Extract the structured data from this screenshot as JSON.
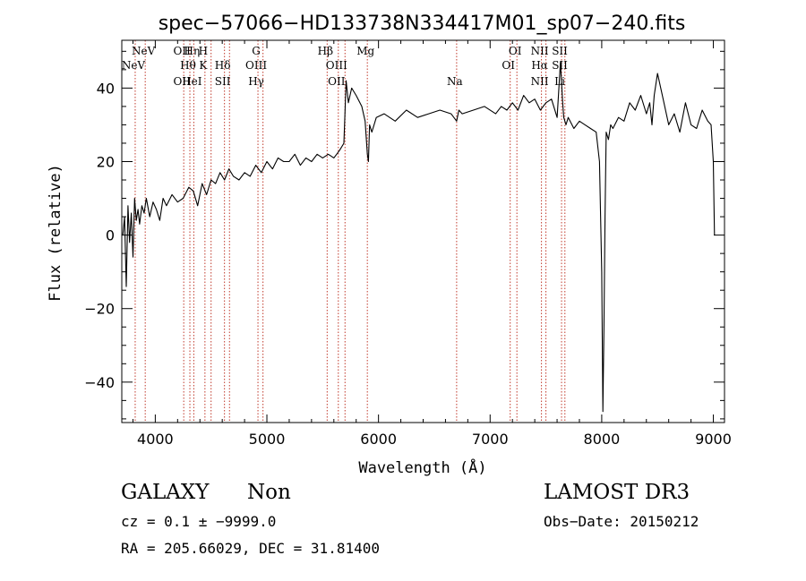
{
  "chart_data": {
    "type": "line",
    "title": "spec−57066−HD133738N334417M01_sp07−240.fits",
    "xlabel": "Wavelength (Å)",
    "ylabel": "Flux (relative)",
    "xlim": [
      3700,
      9100
    ],
    "ylim": [
      -51,
      53
    ],
    "xticks": [
      {
        "v": 4000,
        "label": "4000"
      },
      {
        "v": 5000,
        "label": "5000"
      },
      {
        "v": 6000,
        "label": "6000"
      },
      {
        "v": 7000,
        "label": "7000"
      },
      {
        "v": 8000,
        "label": "8000"
      },
      {
        "v": 9000,
        "label": "9000"
      }
    ],
    "yticks": [
      {
        "v": -40,
        "label": "−40"
      },
      {
        "v": -20,
        "label": "−20"
      },
      {
        "v": 0,
        "label": "0"
      },
      {
        "v": 20,
        "label": "20"
      },
      {
        "v": 40,
        "label": "40"
      }
    ],
    "line_color": "#000000",
    "marker_color": "#c0392b",
    "series": [
      {
        "x": [
          3710,
          3725,
          3740,
          3755,
          3770,
          3785,
          3800,
          3815,
          3830,
          3845,
          3860,
          3880,
          3900,
          3920,
          3950,
          3980,
          4010,
          4040,
          4070,
          4100,
          4150,
          4200,
          4250,
          4300,
          4340,
          4380,
          4420,
          4460,
          4500,
          4540,
          4580,
          4620,
          4660,
          4700,
          4750,
          4800,
          4850,
          4900,
          4950,
          5000,
          5050,
          5100,
          5150,
          5200,
          5250,
          5300,
          5350,
          5400,
          5450,
          5500,
          5550,
          5600,
          5650,
          5690,
          5710,
          5730,
          5760,
          5800,
          5850,
          5880,
          5900,
          5910,
          5920,
          5940,
          5980,
          6050,
          6150,
          6250,
          6350,
          6450,
          6550,
          6650,
          6700,
          6720,
          6750,
          6850,
          6950,
          7050,
          7100,
          7150,
          7200,
          7250,
          7300,
          7350,
          7400,
          7450,
          7500,
          7550,
          7600,
          7630,
          7650,
          7660,
          7680,
          7700,
          7750,
          7800,
          7850,
          7900,
          7950,
          7980,
          8000,
          8010,
          8020,
          8030,
          8040,
          8060,
          8080,
          8100,
          8150,
          8200,
          8250,
          8300,
          8350,
          8400,
          8430,
          8450,
          8470,
          8500,
          8550,
          8600,
          8650,
          8700,
          8750,
          8800,
          8850,
          8900,
          8950,
          8980,
          9000,
          9010
        ],
        "values": [
          0,
          5,
          -14,
          8,
          -2,
          6,
          -6,
          10,
          4,
          7,
          3,
          8,
          6,
          10,
          5,
          9,
          7,
          4,
          10,
          8,
          11,
          9,
          10,
          13,
          12,
          8,
          14,
          11,
          15,
          14,
          17,
          15,
          18,
          16,
          15,
          17,
          16,
          19,
          17,
          20,
          18,
          21,
          20,
          20,
          22,
          19,
          21,
          20,
          22,
          21,
          22,
          21,
          23,
          25,
          42,
          36,
          40,
          38,
          35,
          31,
          22,
          20,
          30,
          28,
          32,
          33,
          31,
          34,
          32,
          33,
          34,
          33,
          31,
          34,
          33,
          34,
          35,
          33,
          35,
          34,
          36,
          34,
          38,
          36,
          37,
          34,
          36,
          37,
          32,
          47,
          36,
          32,
          30,
          32,
          29,
          31,
          30,
          29,
          28,
          20,
          -10,
          -48,
          -25,
          5,
          28,
          26,
          30,
          29,
          32,
          31,
          36,
          34,
          38,
          33,
          36,
          30,
          38,
          44,
          37,
          30,
          33,
          28,
          36,
          30,
          29,
          34,
          31,
          30,
          20,
          0
        ]
      }
    ],
    "markers": [
      {
        "x": 3820,
        "labels": [
          "",
          "NeV"
        ]
      },
      {
        "x": 3910,
        "labels": [
          "NeV"
        ]
      },
      {
        "x": 4255,
        "labels": [
          "OII",
          "",
          "OII"
        ]
      },
      {
        "x": 4310,
        "labels": [
          "",
          "Hθ"
        ]
      },
      {
        "x": 4345,
        "labels": [
          "Hη",
          "",
          "HeI"
        ]
      },
      {
        "x": 4445,
        "labels": [
          "H",
          "K"
        ]
      },
      {
        "x": 4500,
        "labels": []
      },
      {
        "x": 4620,
        "labels": [
          "",
          "Hδ",
          "SII"
        ]
      },
      {
        "x": 4665,
        "labels": []
      },
      {
        "x": 4920,
        "labels": [
          "G",
          "OIII",
          "Hγ"
        ]
      },
      {
        "x": 4965,
        "labels": []
      },
      {
        "x": 5540,
        "labels": [
          "Hβ"
        ]
      },
      {
        "x": 5640,
        "labels": [
          "",
          "OIII",
          "OII"
        ]
      },
      {
        "x": 5700,
        "labels": []
      },
      {
        "x": 5900,
        "labels": [
          "Mg"
        ]
      },
      {
        "x": 6700,
        "labels": [
          "",
          "",
          "Na"
        ]
      },
      {
        "x": 7180,
        "labels": [
          "",
          "OI"
        ]
      },
      {
        "x": 7240,
        "labels": [
          "OI"
        ]
      },
      {
        "x": 7460,
        "labels": [
          "NII",
          "Hα",
          "NII"
        ]
      },
      {
        "x": 7500,
        "labels": []
      },
      {
        "x": 7640,
        "labels": [
          "SII",
          "SII",
          "Li"
        ]
      },
      {
        "x": 7670,
        "labels": []
      }
    ]
  },
  "info": {
    "class_label": "GALAXY",
    "subclass_label": "Non",
    "survey_label": "LAMOST DR3",
    "cz_text": "cz = 0.1 ± −9999.0",
    "obs_date_text": "Obs−Date: 20150212",
    "coords_text": "RA = 205.66029, DEC =  31.81400"
  }
}
